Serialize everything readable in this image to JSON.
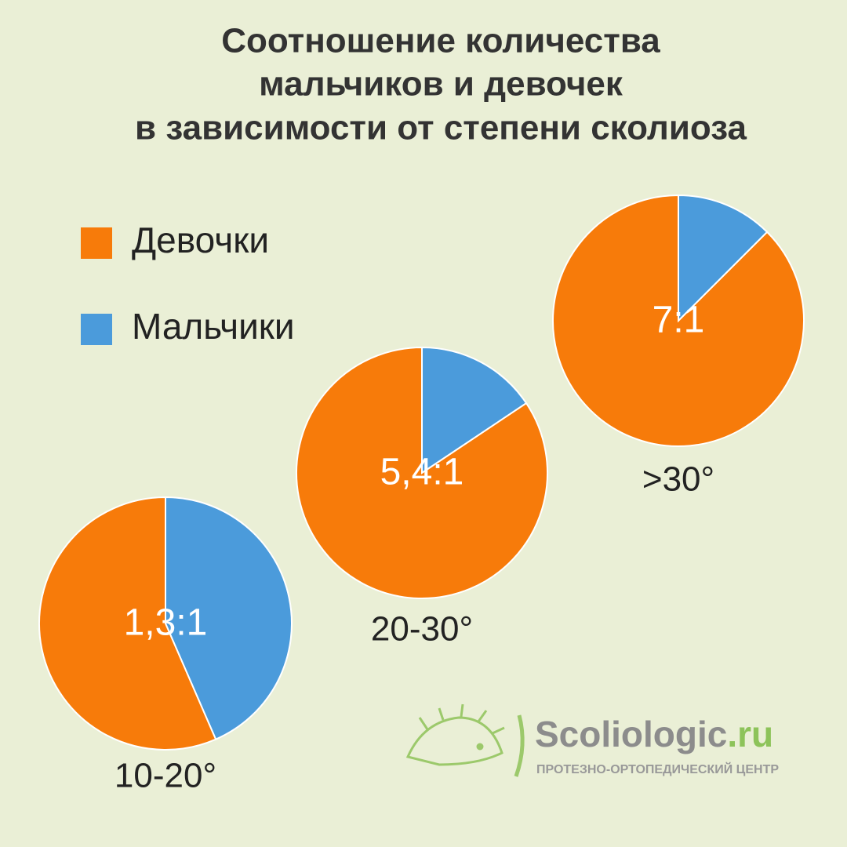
{
  "chart_data": {
    "type": "pie",
    "title": [
      "Соотношение количества",
      "мальчиков и девочек",
      "в зависимости от степени сколиоза"
    ],
    "categories": [
      "10-20°",
      "20-30°",
      ">30°"
    ],
    "series": [
      {
        "name": "Девочки",
        "color": "#f77b0a",
        "values": [
          1.3,
          5.4,
          7
        ]
      },
      {
        "name": "Мальчики",
        "color": "#4b9bdb",
        "values": [
          1,
          1,
          1
        ]
      }
    ],
    "value_labels": [
      "1,3:1",
      "5,4:1",
      "7:1"
    ]
  },
  "logo": {
    "name": "Scoliologic",
    "domain": ".ru",
    "tagline": "ПРОТЕЗНО-ОРТОПЕДИЧЕСКИЙ ЦЕНТР"
  }
}
